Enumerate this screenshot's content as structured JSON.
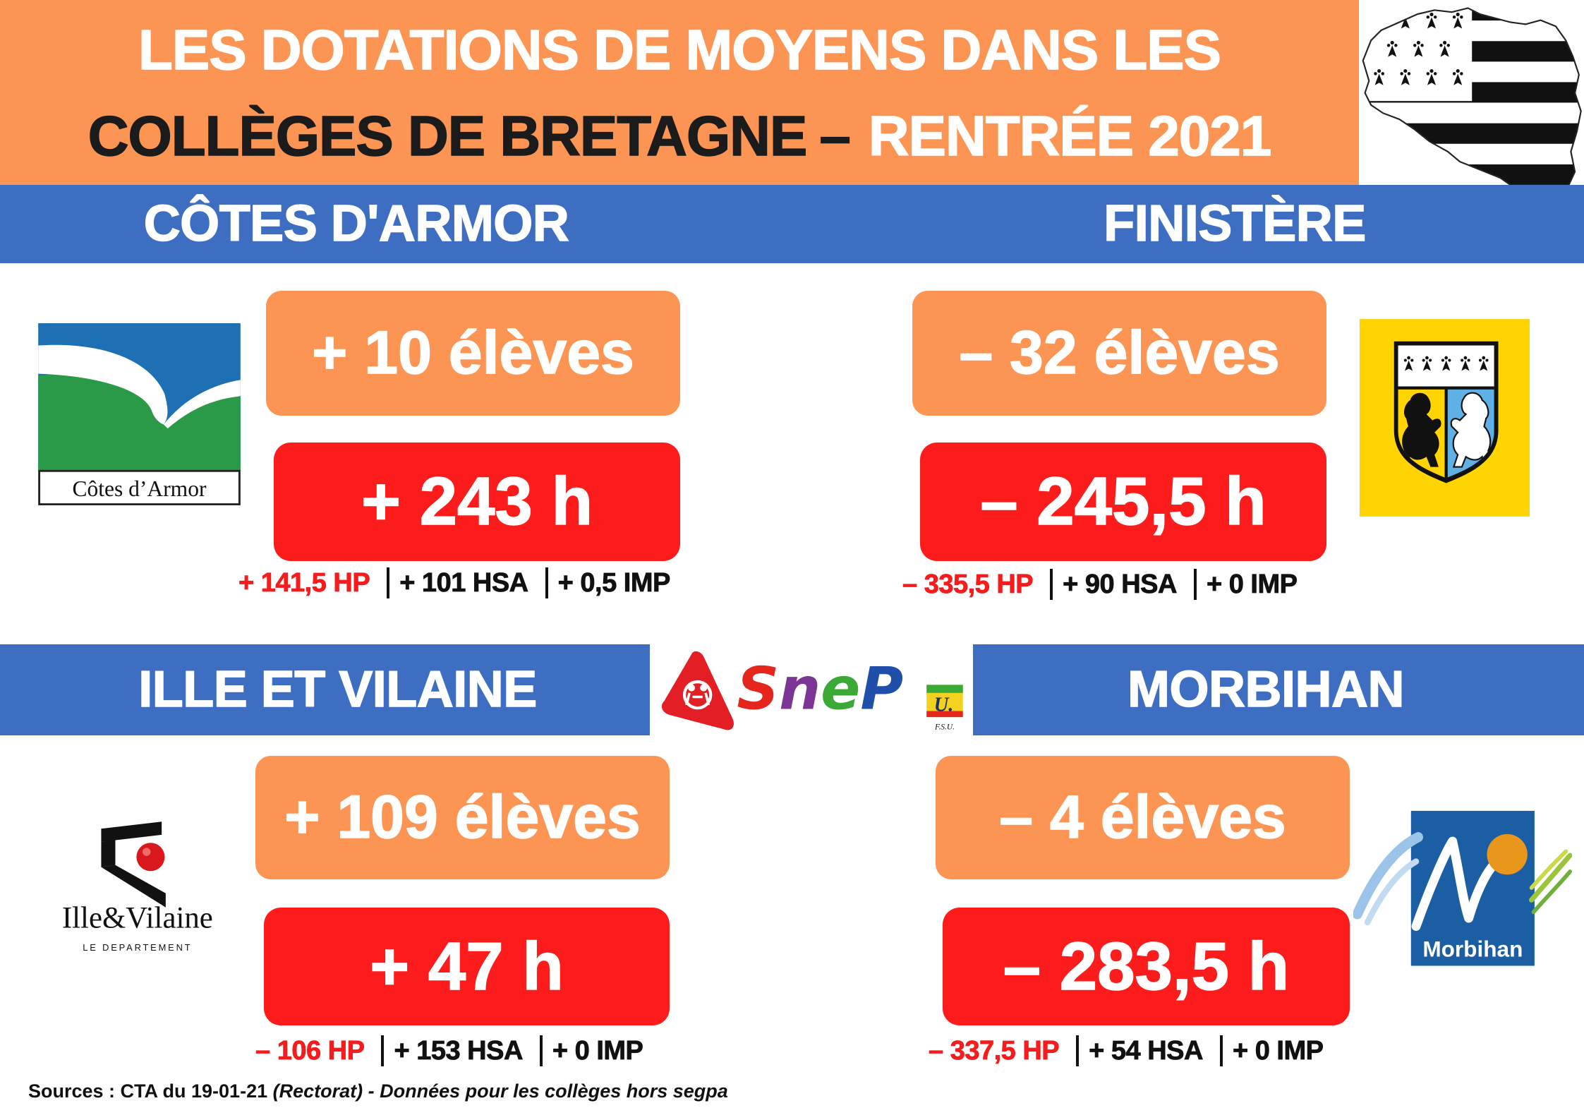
{
  "header": {
    "title_line1": "LES DOTATIONS DE MOYENS DANS LES",
    "title_line2_black": "COLLÈGES DE BRETAGNE",
    "title_dash": "–",
    "title_line2_white": "RENTRÉE 2021"
  },
  "departments": [
    {
      "name": "CÔTES D'ARMOR",
      "eleves": "+ 10 élèves",
      "heures": "+ 243 h",
      "details": {
        "hp": "+ 141,5 HP",
        "hsa": "+ 101 HSA",
        "imp": "+ 0,5 IMP"
      },
      "logo_text": "Côtes d’Armor"
    },
    {
      "name": "FINISTÈRE",
      "eleves": "– 32 élèves",
      "heures": "– 245,5 h",
      "details": {
        "hp": "– 335,5 HP",
        "hsa": "+ 90 HSA",
        "imp": "+ 0 IMP"
      }
    },
    {
      "name": "ILLE ET VILAINE",
      "eleves": "+ 109 élèves",
      "heures": "+ 47 h",
      "details": {
        "hp": "– 106 HP",
        "hsa": "+ 153 HSA",
        "imp": "+ 0 IMP"
      },
      "logo_text": "Ille&Vilaine",
      "logo_subtext": "LE DEPARTEMENT"
    },
    {
      "name": "MORBIHAN",
      "eleves": "– 4 élèves",
      "heures": "– 283,5 h",
      "details": {
        "hp": "– 337,5 HP",
        "hsa": "+ 54 HSA",
        "imp": "+ 0 IMP"
      },
      "logo_text": "Morbihan"
    }
  ],
  "logos": {
    "snep_letters": [
      "S",
      "n",
      "e",
      "P"
    ],
    "fsu_mark": "U.",
    "fsu_text": "F.S.U.",
    "icons": [
      "bretagne-flag-map-icon",
      "cotes-darmor-logo-icon",
      "finistere-coat-of-arms-icon",
      "snep-logo-icon",
      "fsu-logo-icon",
      "ille-et-vilaine-logo-icon",
      "morbihan-logo-icon"
    ]
  },
  "sources": {
    "prefix": "Sources : CTA du 19-01-21 ",
    "rectorat": "(Rectorat)",
    "note": "  - Données pour les collèges hors segpa"
  },
  "colors": {
    "banner_orange": "#fc9553",
    "band_blue": "#3d6ec2",
    "hours_red": "#fd1c1c",
    "hp_text_red": "#f41c1c",
    "text_black": "#111111",
    "finistere_yellow": "#ffd400",
    "morbihan_blue": "#1c5ea3"
  }
}
